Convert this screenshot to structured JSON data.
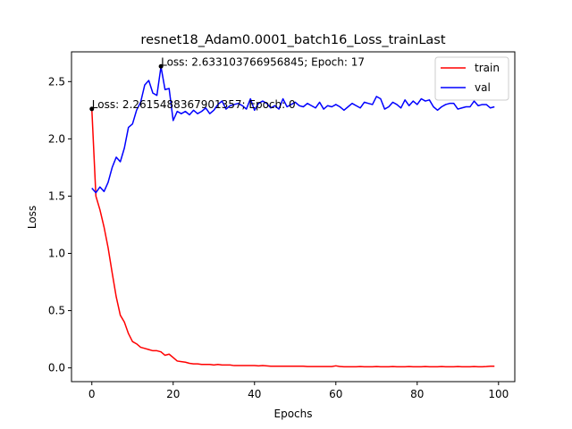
{
  "chart_data": {
    "type": "line",
    "title": "resnet18_Adam0.0001_batch16_Loss_trainLast",
    "xlabel": "Epochs",
    "ylabel": "Loss",
    "xlim": [
      -5,
      104
    ],
    "ylim": [
      -0.12,
      2.76
    ],
    "xticks": [
      0,
      20,
      40,
      60,
      80,
      100
    ],
    "yticks": [
      0.0,
      0.5,
      1.0,
      1.5,
      2.0,
      2.5
    ],
    "ytick_labels": [
      "0.0",
      "0.5",
      "1.0",
      "1.5",
      "2.0",
      "2.5"
    ],
    "grid": false,
    "legend": "top-right",
    "series": [
      {
        "name": "train",
        "color": "#ff0000",
        "values": [
          2.26,
          1.5,
          1.38,
          1.23,
          1.05,
          0.83,
          0.62,
          0.46,
          0.4,
          0.3,
          0.23,
          0.21,
          0.18,
          0.17,
          0.16,
          0.15,
          0.15,
          0.14,
          0.11,
          0.12,
          0.09,
          0.06,
          0.055,
          0.05,
          0.04,
          0.035,
          0.035,
          0.03,
          0.03,
          0.03,
          0.025,
          0.03,
          0.025,
          0.025,
          0.025,
          0.02,
          0.02,
          0.02,
          0.02,
          0.02,
          0.02,
          0.018,
          0.02,
          0.018,
          0.015,
          0.015,
          0.015,
          0.015,
          0.015,
          0.015,
          0.015,
          0.015,
          0.015,
          0.012,
          0.012,
          0.012,
          0.012,
          0.012,
          0.012,
          0.012,
          0.018,
          0.012,
          0.01,
          0.01,
          0.01,
          0.01,
          0.012,
          0.01,
          0.01,
          0.01,
          0.012,
          0.01,
          0.01,
          0.01,
          0.012,
          0.01,
          0.01,
          0.01,
          0.012,
          0.01,
          0.01,
          0.01,
          0.012,
          0.01,
          0.01,
          0.01,
          0.012,
          0.01,
          0.01,
          0.01,
          0.012,
          0.01,
          0.01,
          0.01,
          0.012,
          0.01,
          0.01,
          0.012,
          0.015,
          0.015
        ]
      },
      {
        "name": "val",
        "color": "#0000ff",
        "values": [
          1.57,
          1.53,
          1.58,
          1.54,
          1.62,
          1.75,
          1.84,
          1.8,
          1.92,
          2.1,
          2.13,
          2.25,
          2.32,
          2.47,
          2.51,
          2.4,
          2.38,
          2.63,
          2.43,
          2.44,
          2.16,
          2.24,
          2.22,
          2.24,
          2.21,
          2.25,
          2.22,
          2.24,
          2.27,
          2.22,
          2.25,
          2.3,
          2.33,
          2.26,
          2.29,
          2.3,
          2.31,
          2.29,
          2.26,
          2.35,
          2.25,
          2.31,
          2.33,
          2.31,
          2.27,
          2.29,
          2.26,
          2.35,
          2.28,
          2.3,
          2.32,
          2.29,
          2.28,
          2.31,
          2.29,
          2.27,
          2.32,
          2.26,
          2.29,
          2.28,
          2.3,
          2.28,
          2.25,
          2.28,
          2.31,
          2.29,
          2.27,
          2.32,
          2.31,
          2.3,
          2.37,
          2.35,
          2.26,
          2.28,
          2.32,
          2.3,
          2.27,
          2.34,
          2.29,
          2.33,
          2.3,
          2.35,
          2.33,
          2.34,
          2.28,
          2.25,
          2.28,
          2.3,
          2.31,
          2.31,
          2.26,
          2.27,
          2.28,
          2.28,
          2.33,
          2.29,
          2.3,
          2.3,
          2.27,
          2.28
        ]
      }
    ],
    "annotations": [
      {
        "text": "Loss: 2.2615488367901357; Epoch: 0",
        "x": 0,
        "y": 2.2615488367901357
      },
      {
        "text": "Loss: 2.633103766956845; Epoch: 17",
        "x": 17,
        "y": 2.633103766956845
      }
    ]
  }
}
